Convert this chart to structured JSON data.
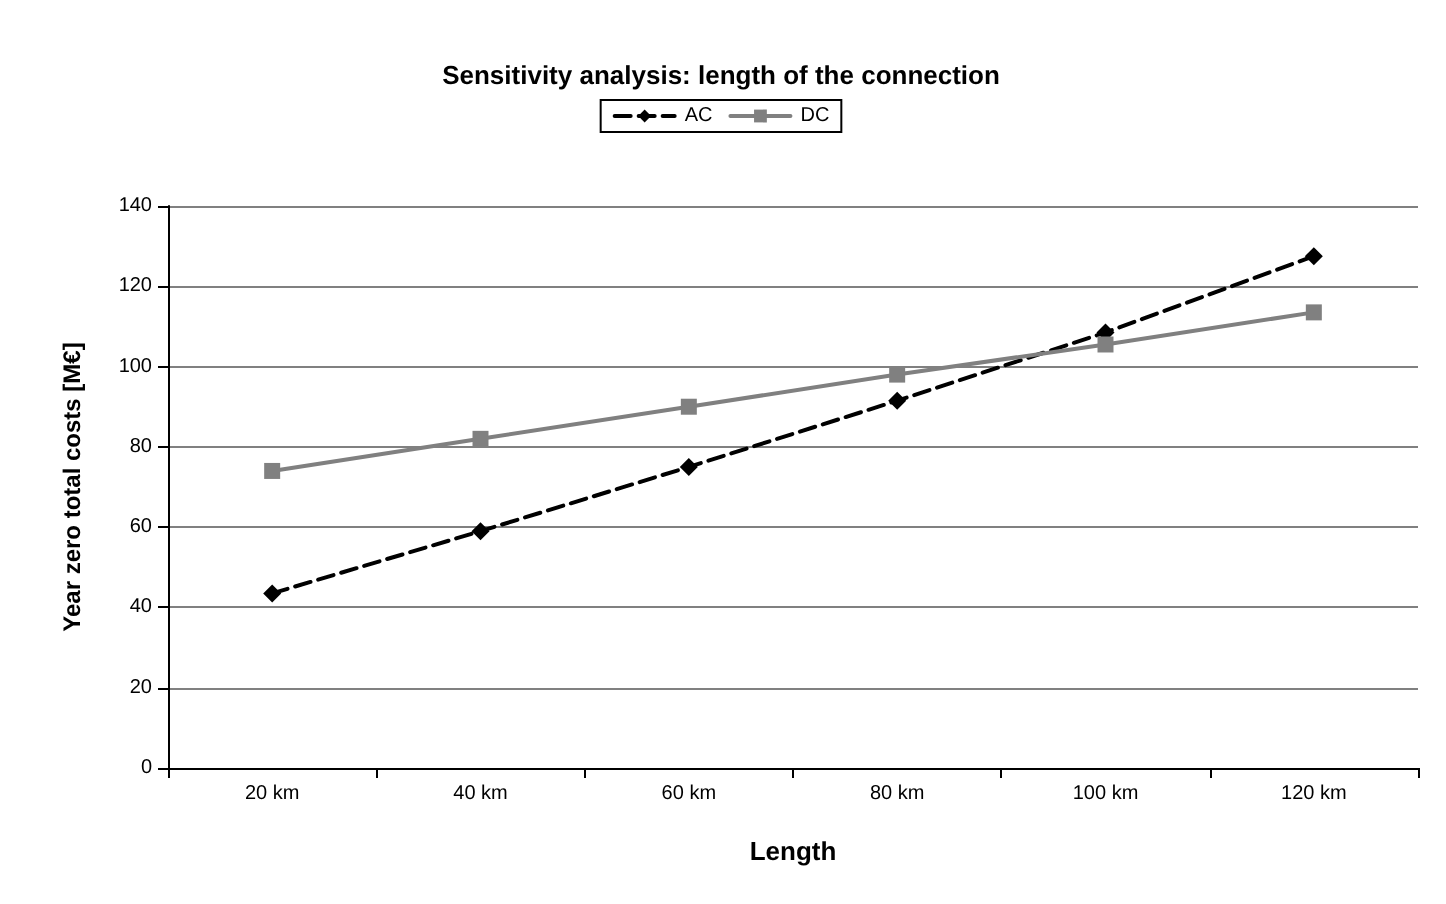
{
  "chart_data": {
    "type": "line",
    "title": "Sensitivity analysis: length of the connection",
    "xlabel": "Length",
    "ylabel": "Year zero total costs [M€]",
    "categories": [
      "20 km",
      "40 km",
      "60 km",
      "80 km",
      "100 km",
      "120 km"
    ],
    "series": [
      {
        "name": "AC",
        "color": "#000000",
        "values": [
          43.5,
          59,
          75,
          91.5,
          108.5,
          127.5
        ],
        "marker": "diamond",
        "line_style": "dashed"
      },
      {
        "name": "DC",
        "color": "#808080",
        "values": [
          74,
          82,
          90,
          98,
          105.5,
          113.5
        ],
        "marker": "square",
        "line_style": "solid"
      }
    ],
    "ylim": [
      0,
      140
    ],
    "yticks": [
      0,
      20,
      40,
      60,
      80,
      100,
      120,
      140
    ],
    "grid": "y",
    "legend": "top"
  }
}
